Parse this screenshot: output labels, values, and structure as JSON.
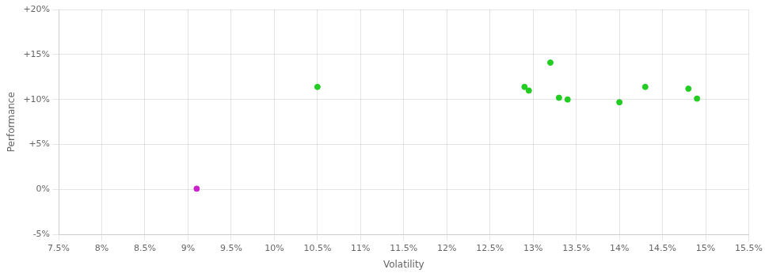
{
  "chart_data": {
    "type": "scatter",
    "xlabel": "Volatility",
    "ylabel": "Performance",
    "series": [
      {
        "color": "#22cc22",
        "values": [
          [
            0.105,
            0.114
          ],
          [
            0.129,
            0.114
          ],
          [
            0.1295,
            0.11
          ],
          [
            0.133,
            0.102
          ],
          [
            0.134,
            0.1
          ],
          [
            0.132,
            0.141
          ],
          [
            0.14,
            0.097
          ],
          [
            0.143,
            0.114
          ],
          [
            0.148,
            0.112
          ],
          [
            0.149,
            0.101
          ]
        ]
      },
      {
        "color": "#cc22cc",
        "values": [
          [
            0.091,
            0.001
          ]
        ]
      }
    ],
    "xlim": [
      0.075,
      0.155
    ],
    "ylim": [
      -0.05,
      0.2
    ],
    "xticks": [
      {
        "value": 0.075,
        "label": "7.5%"
      },
      {
        "value": 0.08,
        "label": "8%"
      },
      {
        "value": 0.085,
        "label": "8.5%"
      },
      {
        "value": 0.09,
        "label": "9%"
      },
      {
        "value": 0.095,
        "label": "9.5%"
      },
      {
        "value": 0.1,
        "label": "10%"
      },
      {
        "value": 0.105,
        "label": "10.5%"
      },
      {
        "value": 0.11,
        "label": "11%"
      },
      {
        "value": 0.115,
        "label": "11.5%"
      },
      {
        "value": 0.12,
        "label": "12%"
      },
      {
        "value": 0.125,
        "label": "12.5%"
      },
      {
        "value": 0.13,
        "label": "13%"
      },
      {
        "value": 0.135,
        "label": "13.5%"
      },
      {
        "value": 0.14,
        "label": "14%"
      },
      {
        "value": 0.145,
        "label": "14.5%"
      },
      {
        "value": 0.15,
        "label": "15%"
      },
      {
        "value": 0.155,
        "label": "15.5%"
      }
    ],
    "yticks": [
      {
        "value": -0.05,
        "label": "-5%"
      },
      {
        "value": 0.0,
        "label": "0%"
      },
      {
        "value": 0.05,
        "label": "+5%"
      },
      {
        "value": 0.1,
        "label": "+10%"
      },
      {
        "value": 0.15,
        "label": "+15%"
      },
      {
        "value": 0.2,
        "label": "+20%"
      }
    ],
    "grid": true
  }
}
